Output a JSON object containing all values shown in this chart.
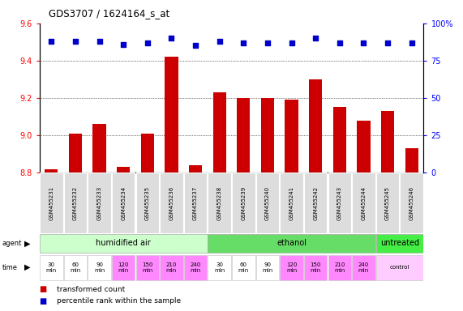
{
  "title": "GDS3707 / 1624164_s_at",
  "samples": [
    "GSM455231",
    "GSM455232",
    "GSM455233",
    "GSM455234",
    "GSM455235",
    "GSM455236",
    "GSM455237",
    "GSM455238",
    "GSM455239",
    "GSM455240",
    "GSM455241",
    "GSM455242",
    "GSM455243",
    "GSM455244",
    "GSM455245",
    "GSM455246"
  ],
  "bar_values": [
    8.82,
    9.01,
    9.06,
    8.83,
    9.01,
    9.42,
    8.84,
    9.23,
    9.2,
    9.2,
    9.19,
    9.3,
    9.15,
    9.08,
    9.13,
    8.93
  ],
  "percentile_values": [
    88,
    88,
    88,
    86,
    87,
    90,
    85,
    88,
    87,
    87,
    87,
    90,
    87,
    87,
    87,
    87
  ],
  "ylim_left": [
    8.8,
    9.6
  ],
  "ylim_right": [
    0,
    100
  ],
  "yticks_left": [
    8.8,
    9.0,
    9.2,
    9.4,
    9.6
  ],
  "yticks_right": [
    0,
    25,
    50,
    75,
    100
  ],
  "bar_color": "#cc0000",
  "dot_color": "#0000cc",
  "bar_width": 0.55,
  "agent_groups": [
    {
      "label": "humidified air",
      "start": 0,
      "end": 7,
      "color": "#ccffcc"
    },
    {
      "label": "ethanol",
      "start": 7,
      "end": 14,
      "color": "#66dd66"
    },
    {
      "label": "untreated",
      "start": 14,
      "end": 16,
      "color": "#44ee44"
    }
  ],
  "time_cells": [
    {
      "label": "30\nmin",
      "start": 0,
      "end": 1,
      "color": "#ffffff"
    },
    {
      "label": "60\nmin",
      "start": 1,
      "end": 2,
      "color": "#ffffff"
    },
    {
      "label": "90\nmin",
      "start": 2,
      "end": 3,
      "color": "#ffffff"
    },
    {
      "label": "120\nmin",
      "start": 3,
      "end": 4,
      "color": "#ff88ff"
    },
    {
      "label": "150\nmin",
      "start": 4,
      "end": 5,
      "color": "#ff88ff"
    },
    {
      "label": "210\nmin",
      "start": 5,
      "end": 6,
      "color": "#ff88ff"
    },
    {
      "label": "240\nmin",
      "start": 6,
      "end": 7,
      "color": "#ff88ff"
    },
    {
      "label": "30\nmin",
      "start": 7,
      "end": 8,
      "color": "#ffffff"
    },
    {
      "label": "60\nmin",
      "start": 8,
      "end": 9,
      "color": "#ffffff"
    },
    {
      "label": "90\nmin",
      "start": 9,
      "end": 10,
      "color": "#ffffff"
    },
    {
      "label": "120\nmin",
      "start": 10,
      "end": 11,
      "color": "#ff88ff"
    },
    {
      "label": "150\nmin",
      "start": 11,
      "end": 12,
      "color": "#ff88ff"
    },
    {
      "label": "210\nmin",
      "start": 12,
      "end": 13,
      "color": "#ff88ff"
    },
    {
      "label": "240\nmin",
      "start": 13,
      "end": 14,
      "color": "#ff88ff"
    },
    {
      "label": "control",
      "start": 14,
      "end": 16,
      "color": "#ffccff"
    }
  ],
  "sample_label_fontsize": 5.0,
  "agent_label_fontsize": 7,
  "time_label_fontsize": 5.0,
  "legend_items": [
    {
      "color": "#cc0000",
      "label": "transformed count"
    },
    {
      "color": "#0000cc",
      "label": "percentile rank within the sample"
    }
  ]
}
